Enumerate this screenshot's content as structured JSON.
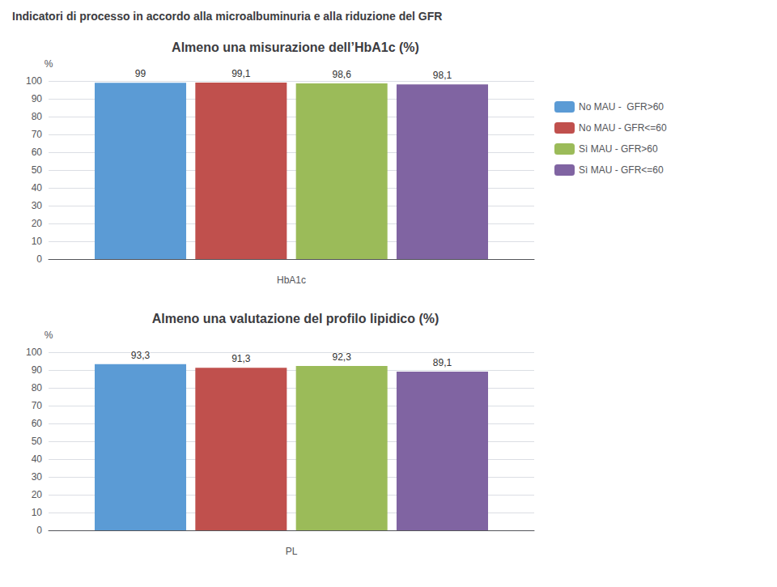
{
  "title": "Indicatori di processo in accordo alla microalbuminuria e alla riduzione del GFR",
  "chart_data": [
    {
      "type": "bar",
      "title": "Almeno una misurazione dell’HbA1c (%)",
      "xlabel": "HbA1c",
      "ylabel": "%",
      "categories": [
        null
      ],
      "series": [
        {
          "name": "No MAU -  GFR>60",
          "color": "#5B9BD5",
          "values": [
            99
          ]
        },
        {
          "name": "No MAU - GFR<=60",
          "color": "#C0504D",
          "values": [
            99.1
          ],
          "value_labels": [
            "99,1"
          ]
        },
        {
          "name": "Sì MAU - GFR>60",
          "color": "#9BBB59",
          "values": [
            98.6
          ],
          "value_labels": [
            "98,6"
          ]
        },
        {
          "name": "Sì MAU - GFR<=60",
          "color": "#8064A2",
          "values": [
            98.1
          ],
          "value_labels": [
            "98,1"
          ]
        }
      ],
      "ylim": [
        0,
        100
      ],
      "yticks": [
        0,
        10,
        20,
        30,
        40,
        50,
        60,
        70,
        80,
        90,
        100
      ],
      "grid": true,
      "data_labels": true,
      "legend": "right"
    },
    {
      "type": "bar",
      "title": "Almeno una valutazione del profilo lipidico (%)",
      "xlabel": "PL",
      "ylabel": "%",
      "categories": [
        null
      ],
      "series": [
        {
          "name": "No MAU -  GFR>60",
          "color": "#5B9BD5",
          "values": [
            93.3
          ],
          "value_labels": [
            "93,3"
          ]
        },
        {
          "name": "No MAU - GFR<=60",
          "color": "#C0504D",
          "values": [
            91.3
          ],
          "value_labels": [
            "91,3"
          ]
        },
        {
          "name": "Sì MAU - GFR>60",
          "color": "#9BBB59",
          "values": [
            92.3
          ],
          "value_labels": [
            "92,3"
          ]
        },
        {
          "name": "Sì MAU - GFR<=60",
          "color": "#8064A2",
          "values": [
            89.1
          ],
          "value_labels": [
            "89,1"
          ]
        }
      ],
      "ylim": [
        0,
        100
      ],
      "yticks": [
        0,
        10,
        20,
        30,
        40,
        50,
        60,
        70,
        80,
        90,
        100
      ],
      "grid": true,
      "data_labels": true
    }
  ]
}
